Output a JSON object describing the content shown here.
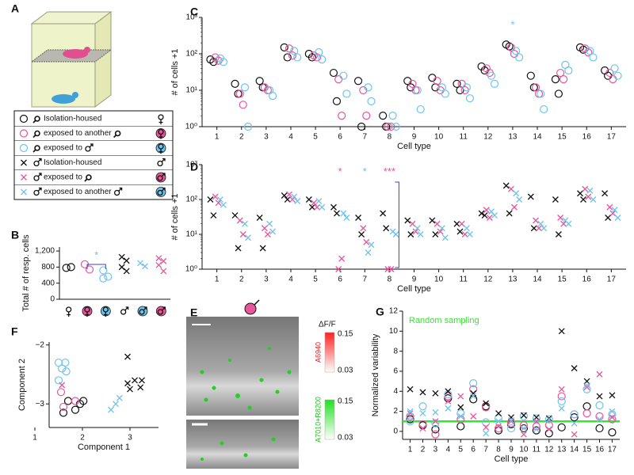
{
  "panel_labels": [
    "A",
    "B",
    "C",
    "D",
    "E",
    "F",
    "G"
  ],
  "legend": {
    "rows": [
      {
        "marker": "circle",
        "color": "#111111",
        "lead": "mouse",
        "text": "Isolation-housed",
        "sex": "female"
      },
      {
        "marker": "circle",
        "color": "#e8559a",
        "lead": "mouse",
        "text": "exposed to another",
        "partner": "mouse",
        "sex": "female",
        "badge": "#e8559a"
      },
      {
        "marker": "circle",
        "color": "#6cc4ec",
        "lead": "mouse",
        "text": "exposed to",
        "partner": "male",
        "sex": "female",
        "badge": "#6cc4ec"
      },
      {
        "marker": "x",
        "color": "#111111",
        "lead": "male",
        "text": "Isolation-housed",
        "sex": "male"
      },
      {
        "marker": "x",
        "color": "#e8559a",
        "lead": "male",
        "text": "exposed to",
        "partner": "mouse",
        "sex": "male",
        "badge": "#e8559a"
      },
      {
        "marker": "x",
        "color": "#6cc4ec",
        "lead": "male",
        "text": "exposed to another",
        "partner": "male",
        "sex": "male",
        "badge": "#6cc4ec"
      }
    ]
  },
  "image_panel": {
    "colorbar_title": "ΔF/F",
    "red": {
      "label": "A6940",
      "max": "0.15",
      "min": "0.03"
    },
    "green": {
      "label": "A7010+R8200",
      "max": "0.15",
      "min": "0.03"
    }
  },
  "chart_data": [
    {
      "type": "scatter",
      "log_y": true,
      "dodge": true,
      "ylabel": "# of cells +1",
      "xlabel": "Cell type",
      "xlim": [
        0.4,
        17.6
      ],
      "xticks": [
        1,
        2,
        3,
        4,
        5,
        6,
        7,
        8,
        9,
        10,
        11,
        12,
        13,
        14,
        15,
        16,
        17
      ],
      "ylim": [
        1,
        1000
      ],
      "yticks": [
        {
          "value": 1,
          "label": "10⁰"
        },
        {
          "value": 10,
          "label": "10¹"
        },
        {
          "value": 100,
          "label": "10²"
        },
        {
          "value": 1000,
          "label": "10³"
        }
      ],
      "series": [
        {
          "color": "#111111",
          "marker": "circle",
          "x": [
            1,
            1,
            2,
            2,
            3,
            3,
            4,
            4,
            5,
            5,
            6,
            6,
            7,
            7,
            8,
            8,
            9,
            9,
            10,
            10,
            11,
            11,
            12,
            12,
            13,
            13,
            14,
            14,
            15,
            15,
            16,
            16,
            17,
            17
          ],
          "values": [
            70,
            60,
            15,
            8,
            18,
            12,
            150,
            80,
            100,
            80,
            30,
            5,
            18,
            1,
            2,
            1,
            18,
            12,
            22,
            12,
            15,
            10,
            45,
            35,
            180,
            160,
            25,
            12,
            20,
            8,
            150,
            130,
            35,
            25
          ]
        },
        {
          "color": "#e8559a",
          "marker": "circle",
          "x": [
            1,
            1,
            2,
            2,
            3,
            3,
            4,
            4,
            5,
            5,
            6,
            6,
            7,
            7,
            8,
            8,
            9,
            9,
            10,
            10,
            11,
            11,
            12,
            12,
            13,
            13,
            14,
            14,
            15,
            15,
            16,
            16,
            17,
            17
          ],
          "values": [
            80,
            65,
            8,
            4,
            12,
            10,
            140,
            90,
            90,
            80,
            20,
            2,
            10,
            2,
            1,
            1,
            15,
            10,
            18,
            10,
            15,
            10,
            40,
            30,
            150,
            100,
            12,
            8,
            30,
            20,
            140,
            110,
            30,
            20
          ]
        },
        {
          "color": "#6cc4ec",
          "marker": "circle",
          "x": [
            1,
            1,
            2,
            2,
            3,
            3,
            4,
            4,
            5,
            5,
            6,
            6,
            7,
            7,
            8,
            8,
            9,
            9,
            10,
            10,
            11,
            11,
            12,
            12,
            13,
            13,
            14,
            14,
            15,
            15,
            16,
            16,
            17,
            17
          ],
          "values": [
            75,
            60,
            12,
            1,
            10,
            7,
            120,
            80,
            110,
            70,
            25,
            8,
            12,
            5,
            2,
            1,
            10,
            3,
            12,
            8,
            12,
            6,
            25,
            15,
            120,
            80,
            8,
            3,
            50,
            35,
            120,
            80,
            40,
            25
          ]
        }
      ],
      "annotations": [
        {
          "text": "*",
          "x": 13,
          "y": 600,
          "color": "#6cc4ec"
        }
      ]
    },
    {
      "type": "scatter",
      "log_y": true,
      "dodge": true,
      "ylabel": "# of cells +1",
      "xlabel": "Cell type",
      "xlim": [
        0.4,
        17.6
      ],
      "xticks": [
        1,
        2,
        3,
        4,
        5,
        6,
        7,
        8,
        9,
        10,
        11,
        12,
        13,
        14,
        15,
        16,
        17
      ],
      "ylim": [
        1,
        1000
      ],
      "yticks": [
        {
          "value": 1,
          "label": "10⁰"
        },
        {
          "value": 10,
          "label": "10¹"
        },
        {
          "value": 100,
          "label": "10²"
        },
        {
          "value": 1000,
          "label": "10³"
        }
      ],
      "series": [
        {
          "color": "#111111",
          "marker": "x",
          "x": [
            1,
            1,
            2,
            2,
            3,
            3,
            4,
            4,
            5,
            5,
            6,
            6,
            7,
            7,
            8,
            8,
            9,
            9,
            10,
            10,
            11,
            11,
            12,
            12,
            13,
            13,
            14,
            14,
            15,
            15,
            16,
            16,
            17,
            17
          ],
          "values": [
            100,
            35,
            35,
            4,
            30,
            4,
            130,
            100,
            100,
            60,
            60,
            40,
            30,
            10,
            40,
            15,
            25,
            10,
            25,
            10,
            20,
            12,
            40,
            35,
            250,
            40,
            120,
            15,
            100,
            10,
            150,
            100,
            150,
            30
          ]
        },
        {
          "color": "#e8559a",
          "marker": "x",
          "x": [
            1,
            1,
            2,
            2,
            3,
            3,
            4,
            4,
            5,
            5,
            6,
            6,
            7,
            7,
            8,
            8,
            9,
            9,
            10,
            10,
            11,
            11,
            12,
            12,
            13,
            13,
            14,
            14,
            15,
            15,
            16,
            16,
            17,
            17
          ],
          "values": [
            120,
            80,
            25,
            10,
            15,
            10,
            140,
            100,
            80,
            60,
            1,
            2,
            15,
            6,
            1,
            1,
            20,
            12,
            20,
            12,
            20,
            10,
            50,
            30,
            200,
            60,
            25,
            15,
            30,
            20,
            200,
            120,
            60,
            40
          ]
        },
        {
          "color": "#6cc4ec",
          "marker": "x",
          "x": [
            1,
            1,
            2,
            2,
            3,
            3,
            4,
            4,
            5,
            5,
            6,
            6,
            7,
            7,
            8,
            8,
            9,
            9,
            10,
            10,
            11,
            11,
            12,
            12,
            13,
            13,
            14,
            14,
            15,
            15,
            16,
            16,
            17,
            17
          ],
          "values": [
            100,
            70,
            20,
            8,
            20,
            12,
            120,
            90,
            90,
            60,
            40,
            30,
            3,
            5,
            12,
            10,
            15,
            10,
            15,
            8,
            15,
            10,
            45,
            35,
            150,
            100,
            20,
            15,
            25,
            20,
            180,
            100,
            50,
            30
          ]
        }
      ],
      "annotations": [
        {
          "text": "*",
          "x": 6,
          "y": 600,
          "color": "#e8559a"
        },
        {
          "text": "*",
          "x": 7,
          "y": 600,
          "color": "#6cc4ec"
        },
        {
          "text": "***",
          "x": 8,
          "y": 600,
          "color": "#e8559a"
        }
      ]
    },
    {
      "type": "scatter",
      "ylabel": "Total # of resp. cells",
      "category_icons": [
        {
          "sex": "female"
        },
        {
          "sex": "female",
          "badge": "#e8559a"
        },
        {
          "sex": "female",
          "badge": "#6cc4ec"
        },
        {
          "sex": "male"
        },
        {
          "sex": "male",
          "badge": "#6cc4ec"
        },
        {
          "sex": "male",
          "badge": "#e8559a"
        }
      ],
      "ylim": [
        0,
        1300
      ],
      "yticks": [
        0,
        400,
        800,
        {
          "value": 1200,
          "label": "1,200"
        }
      ],
      "series": [
        {
          "color": "#111111",
          "marker": "circle",
          "values": [
            780,
            800
          ]
        },
        {
          "color": "#e8559a",
          "marker": "circle",
          "values": [
            870,
            740
          ]
        },
        {
          "color": "#6cc4ec",
          "marker": "circle",
          "values": [
            720,
            560,
            520
          ]
        },
        {
          "color": "#111111",
          "marker": "x",
          "values": [
            1050,
            960,
            800,
            700
          ]
        },
        {
          "color": "#6cc4ec",
          "marker": "x",
          "values": [
            900,
            820
          ]
        },
        {
          "color": "#e8559a",
          "marker": "x",
          "values": [
            1020,
            950,
            850,
            700
          ]
        }
      ],
      "annotations": [
        {
          "text": "*",
          "x": 1.5,
          "y": 1080,
          "color": "#6cc4ec"
        }
      ]
    },
    {
      "type": "scatter",
      "xlabel": "Component 1",
      "ylabel": "Component 2",
      "xlim": [
        1.3,
        3.6
      ],
      "xticks": [
        1,
        2,
        3
      ],
      "ylim": [
        -3.4,
        -1.95
      ],
      "yticks": [
        {
          "value": -3,
          "label": "−3"
        },
        {
          "value": -2,
          "label": "−2"
        }
      ],
      "series": [
        {
          "color": "#111111",
          "marker": "circle",
          "x": [
            1.7,
            1.85,
            1.95,
            2.02,
            1.6
          ],
          "values": [
            -2.95,
            -3.1,
            -3.0,
            -2.95,
            -3.15
          ]
        },
        {
          "color": "#e8559a",
          "marker": "circle",
          "x": [
            1.55,
            1.6,
            1.85
          ],
          "values": [
            -2.8,
            -3.05,
            -2.95
          ]
        },
        {
          "color": "#6cc4ec",
          "marker": "circle",
          "x": [
            1.5,
            1.57,
            1.64,
            1.66,
            1.5
          ],
          "values": [
            -2.3,
            -2.4,
            -2.3,
            -2.45,
            -2.6
          ]
        },
        {
          "color": "#111111",
          "marker": "x",
          "x": [
            2.95,
            2.95,
            3.1,
            3.25,
            3.22,
            3.0
          ],
          "values": [
            -2.2,
            -2.65,
            -2.6,
            -2.6,
            -2.72,
            -2.75
          ]
        },
        {
          "color": "#e8559a",
          "marker": "x",
          "x": [
            1.57
          ],
          "values": [
            -2.68
          ]
        },
        {
          "color": "#6cc4ec",
          "marker": "x",
          "x": [
            2.7,
            2.6,
            2.78
          ],
          "values": [
            -3.0,
            -3.1,
            -2.9
          ]
        }
      ]
    },
    {
      "type": "scatter",
      "xlabel": "Cell type",
      "ylabel": "Normalized variability",
      "xlim": [
        0.4,
        17.6
      ],
      "xticks": [
        1,
        2,
        3,
        4,
        5,
        6,
        7,
        8,
        9,
        10,
        11,
        12,
        13,
        14,
        15,
        16,
        17
      ],
      "ylim": [
        -0.8,
        12
      ],
      "yticks": [
        0,
        2,
        4,
        6,
        8,
        10,
        12
      ],
      "hline": {
        "value": 1,
        "label": "Random sampling",
        "color": "#33e633"
      },
      "series": [
        {
          "color": "#111111",
          "marker": "circle",
          "x": [
            1,
            2,
            3,
            4,
            5,
            6,
            7,
            8,
            9,
            10,
            11,
            12,
            13,
            14,
            15,
            16,
            17
          ],
          "values": [
            1.2,
            0.6,
            0.2,
            3.3,
            0.5,
            3.2,
            2.5,
            0.1,
            0.7,
            0.3,
            0.1,
            -0.2,
            0.4,
            1.4,
            2.5,
            0.3,
            -0.1
          ]
        },
        {
          "color": "#e8559a",
          "marker": "circle",
          "x": [
            1,
            2,
            3,
            4,
            5,
            6,
            7,
            8,
            9,
            10,
            11,
            12,
            13,
            14,
            15,
            16,
            17
          ],
          "values": [
            1.5,
            0.7,
            -0.3,
            3.5,
            1.2,
            4.2,
            2.4,
            0.3,
            0.8,
            0.6,
            0.5,
            0.6,
            3.5,
            1.7,
            1.8,
            1.5,
            1.2
          ]
        },
        {
          "color": "#6cc4ec",
          "marker": "circle",
          "x": [
            1,
            2,
            3,
            4,
            5,
            6,
            7,
            8,
            9,
            10,
            11,
            12,
            13,
            14,
            15,
            16,
            17
          ],
          "values": [
            1.0,
            2.5,
            0.8,
            3.7,
            1.8,
            4.8,
            0.9,
            1.3,
            0.3,
            1.5,
            1.3,
            1.2,
            3.0,
            1.7,
            4.2,
            2.6,
            1.7
          ]
        },
        {
          "color": "#111111",
          "marker": "x",
          "x": [
            1,
            2,
            3,
            4,
            5,
            6,
            7,
            8,
            9,
            10,
            11,
            12,
            13,
            14,
            15,
            16,
            17
          ],
          "values": [
            4.2,
            3.9,
            3.8,
            4.0,
            2.4,
            3.8,
            2.8,
            1.8,
            1.4,
            1.6,
            1.4,
            1.3,
            10.0,
            6.3,
            5.0,
            3.5,
            3.6
          ]
        },
        {
          "color": "#e8559a",
          "marker": "x",
          "x": [
            1,
            2,
            3,
            4,
            5,
            6,
            7,
            8,
            9,
            10,
            11,
            12,
            13,
            14,
            15,
            16,
            17
          ],
          "values": [
            1.8,
            0.3,
            1.0,
            3.0,
            3.5,
            1.5,
            0.4,
            0.5,
            1.0,
            -0.3,
            1.0,
            0.2,
            4.2,
            -0.3,
            4.4,
            5.7,
            1.4
          ]
        },
        {
          "color": "#6cc4ec",
          "marker": "x",
          "x": [
            1,
            2,
            3,
            4,
            5,
            6,
            7,
            8,
            9,
            10,
            11,
            12,
            13,
            14,
            15,
            16,
            17
          ],
          "values": [
            2.0,
            1.8,
            1.9,
            2.3,
            1.5,
            3.5,
            -0.2,
            1.0,
            1.1,
            0.3,
            0.2,
            1.2,
            2.3,
            0.8,
            4.6,
            1.2,
            2.0
          ]
        }
      ]
    }
  ]
}
